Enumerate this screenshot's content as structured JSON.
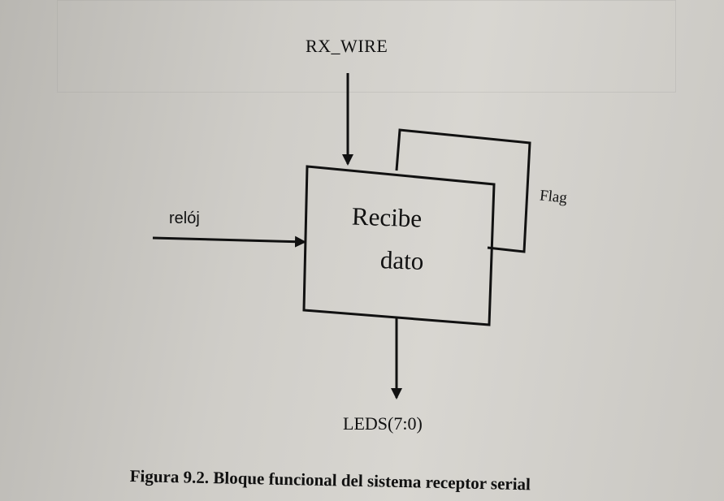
{
  "diagram": {
    "main_block": {
      "line1": "Recibe",
      "line2": "dato"
    },
    "inputs": {
      "top": "RX_WIRE",
      "left": "relój"
    },
    "feedback": "Flag",
    "output": "LEDS(7:0)"
  },
  "caption": "Figura 9.2. Bloque funcional del sistema receptor serial",
  "colors": {
    "ink": "#111111",
    "paper": "#d2d0cb"
  }
}
